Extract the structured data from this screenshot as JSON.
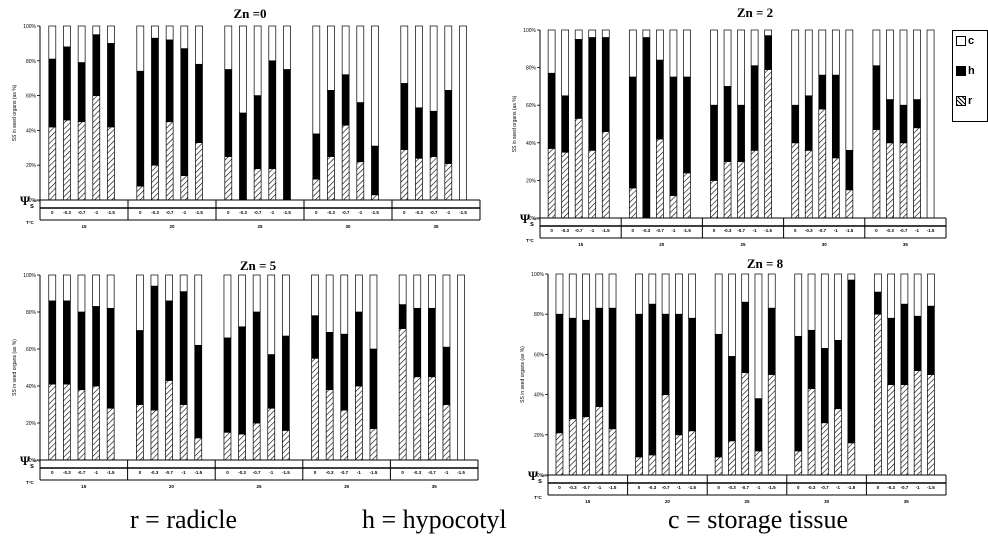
{
  "figure": {
    "ylabel": "SS in seed organs (as %)",
    "y_ticks": [
      "0%",
      "20%",
      "40%",
      "60%",
      "80%",
      "100%"
    ],
    "psi_label": "Ψs",
    "psi_unit": "MPa",
    "temp_label": "T°C",
    "psi_levels": [
      "0",
      "-0.3",
      "-0.7",
      "-1",
      "-1.5"
    ],
    "temps": [
      "15",
      "20",
      "25",
      "30",
      "35"
    ]
  },
  "legend": {
    "items": [
      {
        "key": "c",
        "label": "c",
        "color": "#ffffff",
        "pattern": "empty"
      },
      {
        "key": "h",
        "label": "h",
        "color": "#000000",
        "pattern": "solid"
      },
      {
        "key": "r",
        "label": "r",
        "color": "#ffffff",
        "pattern": "hatch"
      }
    ]
  },
  "footer": {
    "radicle": "r = radicle",
    "hypocotyl": "h = hypocotyl",
    "storage": "c = storage tissue"
  },
  "chart_data": [
    {
      "type": "bar",
      "stacked": true,
      "title": "Zn =0",
      "categories_outer": [
        "15",
        "20",
        "25",
        "30",
        "35"
      ],
      "categories_inner": [
        "0",
        "-0.3",
        "-0.7",
        "-1",
        "-1.5"
      ],
      "series": [
        {
          "name": "r",
          "values": [
            [
              42,
              46,
              45,
              60,
              42
            ],
            [
              8,
              20,
              45,
              14,
              33
            ],
            [
              25,
              0,
              18,
              18,
              0
            ],
            [
              12,
              25,
              43,
              22,
              3
            ],
            [
              29,
              24,
              25,
              21,
              0
            ]
          ]
        },
        {
          "name": "h",
          "values": [
            [
              39,
              42,
              34,
              35,
              48
            ],
            [
              66,
              73,
              47,
              73,
              45
            ],
            [
              50,
              50,
              42,
              62,
              75
            ],
            [
              26,
              38,
              29,
              34,
              28
            ],
            [
              38,
              29,
              26,
              42,
              0
            ]
          ]
        },
        {
          "name": "c",
          "values": [
            [
              19,
              12,
              21,
              5,
              10
            ],
            [
              26,
              7,
              8,
              13,
              22
            ],
            [
              25,
              50,
              40,
              20,
              25
            ],
            [
              62,
              37,
              28,
              44,
              69
            ],
            [
              33,
              47,
              49,
              37,
              100
            ]
          ]
        }
      ],
      "ylim": [
        0,
        100
      ]
    },
    {
      "type": "bar",
      "stacked": true,
      "title": "Zn = 2",
      "categories_outer": [
        "15",
        "20",
        "25",
        "30",
        "35"
      ],
      "categories_inner": [
        "0",
        "-0.3",
        "-0.7",
        "-1",
        "-1.5"
      ],
      "series": [
        {
          "name": "r",
          "values": [
            [
              37,
              35,
              53,
              36,
              46
            ],
            [
              16,
              0,
              42,
              12,
              24
            ],
            [
              20,
              30,
              30,
              36,
              79
            ],
            [
              40,
              36,
              58,
              32,
              15
            ],
            [
              47,
              40,
              40,
              48,
              0
            ]
          ]
        },
        {
          "name": "h",
          "values": [
            [
              40,
              30,
              42,
              60,
              50
            ],
            [
              59,
              96,
              42,
              63,
              51
            ],
            [
              40,
              40,
              30,
              45,
              18
            ],
            [
              20,
              29,
              18,
              44,
              21
            ],
            [
              34,
              23,
              20,
              15,
              0
            ]
          ]
        },
        {
          "name": "c",
          "values": [
            [
              23,
              35,
              5,
              4,
              4
            ],
            [
              25,
              4,
              16,
              25,
              25
            ],
            [
              40,
              30,
              40,
              19,
              3
            ],
            [
              40,
              35,
              24,
              24,
              64
            ],
            [
              19,
              37,
              40,
              37,
              100
            ]
          ]
        }
      ],
      "ylim": [
        0,
        100
      ]
    },
    {
      "type": "bar",
      "stacked": true,
      "title": "Zn = 5",
      "categories_outer": [
        "15",
        "20",
        "25",
        "30",
        "35"
      ],
      "categories_inner": [
        "0",
        "-0.3",
        "-0.7",
        "-1",
        "-1.5"
      ],
      "series": [
        {
          "name": "r",
          "values": [
            [
              41,
              41,
              38,
              40,
              28
            ],
            [
              30,
              27,
              43,
              30,
              12
            ],
            [
              15,
              14,
              20,
              28,
              16
            ],
            [
              55,
              38,
              27,
              40,
              17
            ],
            [
              71,
              45,
              45,
              30,
              0
            ]
          ]
        },
        {
          "name": "h",
          "values": [
            [
              45,
              45,
              42,
              43,
              54
            ],
            [
              40,
              67,
              43,
              61,
              50
            ],
            [
              51,
              58,
              60,
              29,
              51
            ],
            [
              23,
              31,
              41,
              40,
              43
            ],
            [
              13,
              37,
              37,
              31,
              0
            ]
          ]
        },
        {
          "name": "c",
          "values": [
            [
              14,
              14,
              20,
              17,
              18
            ],
            [
              30,
              6,
              14,
              9,
              38
            ],
            [
              34,
              28,
              20,
              43,
              33
            ],
            [
              22,
              31,
              32,
              20,
              40
            ],
            [
              16,
              18,
              18,
              39,
              100
            ]
          ]
        }
      ],
      "ylim": [
        0,
        100
      ]
    },
    {
      "type": "bar",
      "stacked": true,
      "title": "Zn = 8",
      "categories_outer": [
        "15",
        "20",
        "25",
        "30",
        "35"
      ],
      "categories_inner": [
        "0",
        "-0.3",
        "-0.7",
        "-1",
        "-1.5"
      ],
      "series": [
        {
          "name": "r",
          "values": [
            [
              21,
              28,
              29,
              34,
              23
            ],
            [
              9,
              10,
              40,
              20,
              22
            ],
            [
              9,
              17,
              51,
              12,
              50
            ],
            [
              12,
              43,
              26,
              33,
              16
            ],
            [
              80,
              45,
              45,
              52,
              50
            ]
          ]
        },
        {
          "name": "h",
          "values": [
            [
              59,
              50,
              48,
              49,
              60
            ],
            [
              71,
              75,
              40,
              60,
              56
            ],
            [
              61,
              42,
              35,
              26,
              33
            ],
            [
              57,
              29,
              37,
              34,
              81
            ],
            [
              11,
              33,
              40,
              27,
              34
            ]
          ]
        },
        {
          "name": "c",
          "values": [
            [
              20,
              22,
              23,
              17,
              17
            ],
            [
              20,
              15,
              20,
              20,
              22
            ],
            [
              30,
              41,
              14,
              62,
              17
            ],
            [
              31,
              28,
              37,
              33,
              3
            ],
            [
              9,
              22,
              15,
              21,
              16
            ]
          ]
        }
      ],
      "ylim": [
        0,
        100
      ]
    }
  ]
}
